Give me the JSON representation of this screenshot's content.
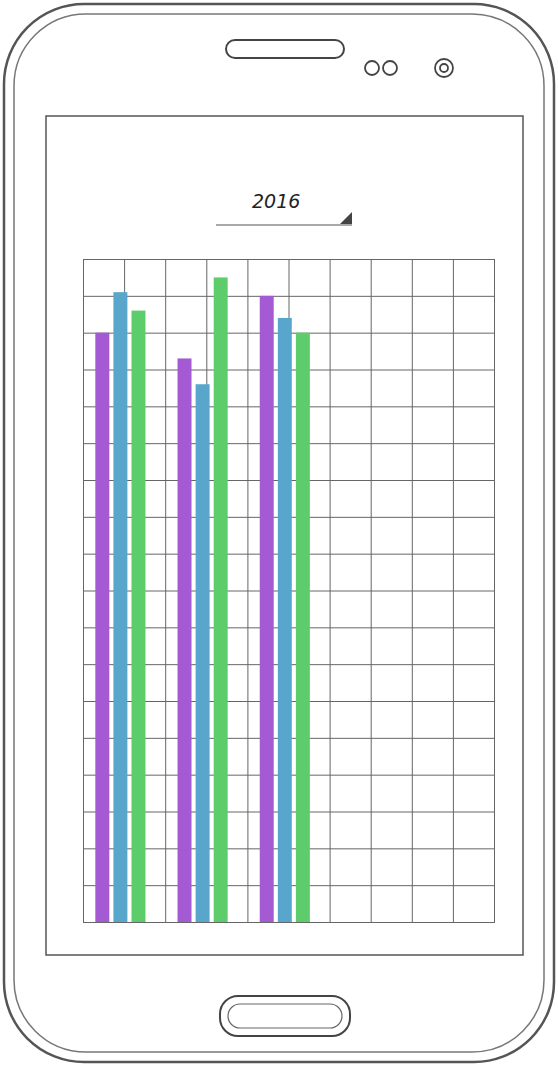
{
  "chart_data": {
    "type": "bar",
    "title": "2016",
    "categories": [
      null,
      null,
      null,
      null,
      null
    ],
    "series": [
      {
        "color": "#a45ad2",
        "values": [
          16.0,
          15.3,
          17.0,
          null,
          null
        ]
      },
      {
        "color": "#59a6cc",
        "values": [
          17.1,
          14.6,
          16.4,
          null,
          null
        ]
      },
      {
        "color": "#5dcd6c",
        "values": [
          16.6,
          17.5,
          16.0,
          null,
          null
        ]
      }
    ],
    "ylim": [
      0,
      18
    ],
    "yticks": [
      0,
      1,
      2,
      3,
      4,
      5,
      6,
      7,
      8,
      9,
      10,
      11,
      12,
      13,
      14,
      15,
      16,
      17,
      18
    ],
    "grid": true,
    "tick_labels": false
  }
}
